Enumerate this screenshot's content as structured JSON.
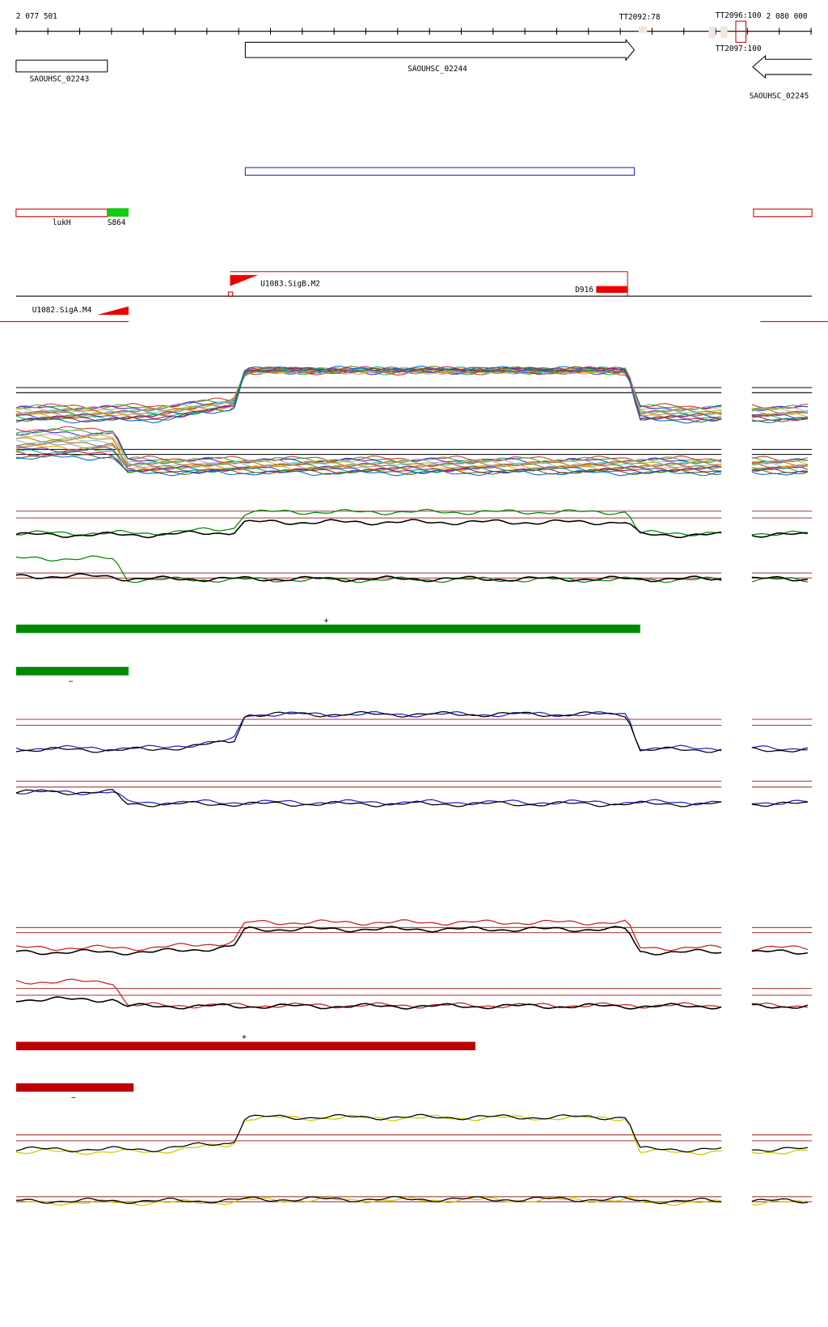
{
  "ruler": {
    "start_label": "2 077 501",
    "end_label": "2 080 000",
    "terminators": [
      "TT2092:78",
      "TT2096:100",
      "TT2097:100"
    ]
  },
  "genes": [
    "SAOUHSC_02243",
    "SAOUHSC_02244",
    "SAOUHSC_02245"
  ],
  "features": [
    "lukH",
    "S864",
    "D916"
  ],
  "promoters": [
    "U1083.SigB.M2",
    "U1082.SigA.M4"
  ],
  "strands": {
    "green_plus": "+",
    "green_minus": "−",
    "red_plus": "+",
    "red_minus": "−"
  }
}
